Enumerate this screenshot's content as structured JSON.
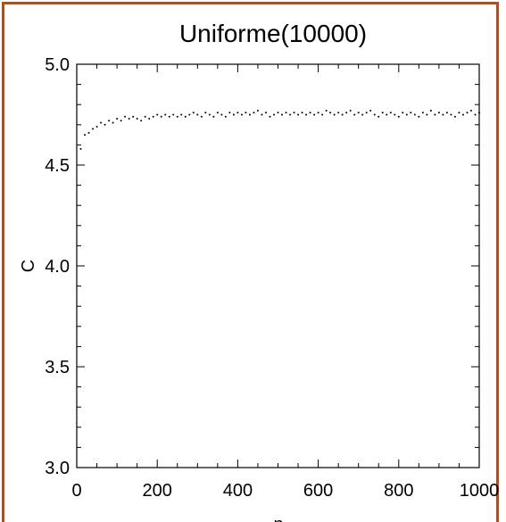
{
  "chart_data": {
    "type": "scatter",
    "title": "Uniforme(10000)",
    "xlabel": "n",
    "ylabel": "C",
    "xlim": [
      0,
      1000
    ],
    "ylim": [
      3.0,
      5.0
    ],
    "x_ticks": [
      0,
      200,
      400,
      600,
      800,
      1000
    ],
    "x_tick_labels": [
      "0",
      "200",
      "400",
      "600",
      "800",
      "1000"
    ],
    "y_ticks": [
      3.0,
      3.5,
      4.0,
      4.5,
      5.0
    ],
    "y_tick_labels": [
      "3.0",
      "3.5",
      "4.0",
      "4.5",
      "5.0"
    ],
    "grid": false,
    "series": [
      {
        "x": [
          10,
          20,
          30,
          40,
          50,
          60,
          70,
          80,
          90,
          100,
          110,
          120,
          130,
          140,
          150,
          160,
          170,
          180,
          190,
          200,
          210,
          220,
          230,
          240,
          250,
          260,
          270,
          280,
          290,
          300,
          310,
          320,
          330,
          340,
          350,
          360,
          370,
          380,
          390,
          400,
          410,
          420,
          430,
          440,
          450,
          460,
          470,
          480,
          490,
          500,
          510,
          520,
          530,
          540,
          550,
          560,
          570,
          580,
          590,
          600,
          610,
          620,
          630,
          640,
          650,
          660,
          670,
          680,
          690,
          700,
          710,
          720,
          730,
          740,
          750,
          760,
          770,
          780,
          790,
          800,
          810,
          820,
          830,
          840,
          850,
          860,
          870,
          880,
          890,
          900,
          910,
          920,
          930,
          940,
          950,
          960,
          970,
          980,
          990,
          1000
        ],
        "values": [
          4.58,
          4.65,
          4.66,
          4.68,
          4.69,
          4.71,
          4.7,
          4.72,
          4.71,
          4.73,
          4.72,
          4.74,
          4.73,
          4.74,
          4.73,
          4.72,
          4.74,
          4.73,
          4.74,
          4.75,
          4.74,
          4.75,
          4.74,
          4.75,
          4.74,
          4.75,
          4.74,
          4.75,
          4.76,
          4.75,
          4.74,
          4.76,
          4.75,
          4.74,
          4.76,
          4.75,
          4.74,
          4.76,
          4.75,
          4.76,
          4.75,
          4.76,
          4.75,
          4.76,
          4.77,
          4.75,
          4.76,
          4.74,
          4.75,
          4.76,
          4.75,
          4.76,
          4.75,
          4.76,
          4.75,
          4.76,
          4.75,
          4.76,
          4.75,
          4.76,
          4.75,
          4.77,
          4.76,
          4.75,
          4.76,
          4.75,
          4.76,
          4.77,
          4.75,
          4.76,
          4.75,
          4.76,
          4.77,
          4.75,
          4.74,
          4.76,
          4.75,
          4.76,
          4.75,
          4.74,
          4.76,
          4.75,
          4.76,
          4.75,
          4.74,
          4.76,
          4.75,
          4.77,
          4.75,
          4.76,
          4.75,
          4.76,
          4.75,
          4.74,
          4.76,
          4.75,
          4.76,
          4.77,
          4.75,
          4.76
        ],
        "color": "#000000"
      }
    ]
  }
}
